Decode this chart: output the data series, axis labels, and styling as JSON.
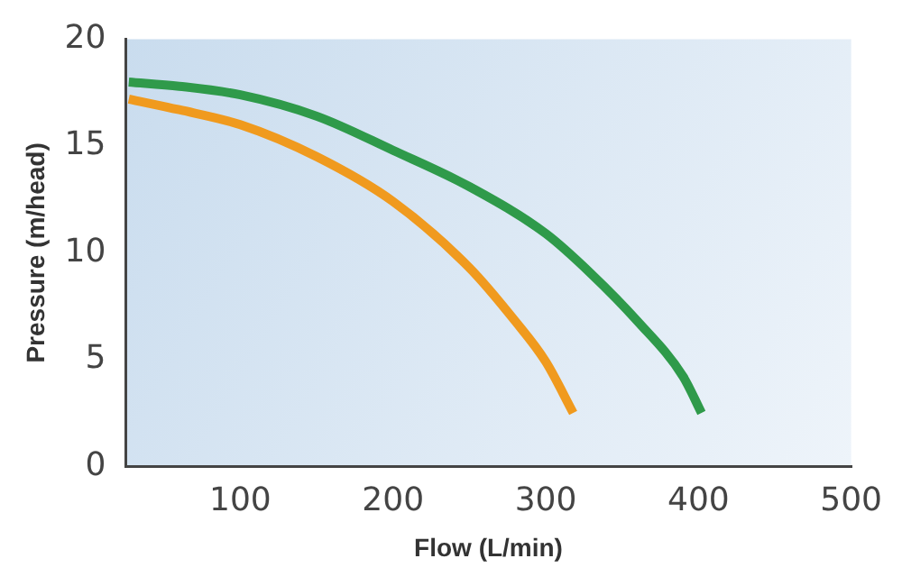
{
  "chart_data": {
    "type": "line",
    "xlabel": "Flow (L/min)",
    "ylabel": "Pressure (m/head)",
    "xlim": [
      25,
      500
    ],
    "xticks": [
      100,
      200,
      300,
      400,
      500
    ],
    "ylim": [
      0,
      20
    ],
    "yticks": [
      0,
      5,
      10,
      15,
      20
    ],
    "grid": false,
    "legend": false,
    "marker": "none",
    "series": [
      {
        "color": "#2f9a4a",
        "x": [
          27,
          60,
          100,
          150,
          200,
          250,
          300,
          330,
          360,
          390,
          402
        ],
        "values": [
          18.0,
          17.8,
          17.4,
          16.4,
          14.8,
          13.1,
          10.9,
          9.0,
          6.8,
          4.2,
          2.5
        ]
      },
      {
        "color": "#f09a1e",
        "x": [
          27,
          60,
          100,
          150,
          200,
          250,
          280,
          300,
          318
        ],
        "values": [
          17.2,
          16.7,
          16.0,
          14.5,
          12.4,
          9.3,
          6.8,
          4.9,
          2.5
        ]
      }
    ]
  }
}
